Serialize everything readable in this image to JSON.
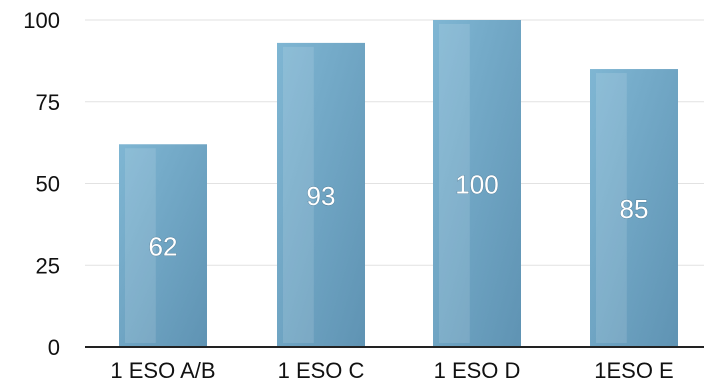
{
  "chart_data": {
    "type": "bar",
    "title": "",
    "xlabel": "",
    "ylabel": "",
    "categories": [
      "1 ESO A/B",
      "1 ESO C",
      "1 ESO D",
      "1ESO E"
    ],
    "values": [
      62,
      93,
      100,
      85
    ],
    "value_labels": [
      "62",
      "93",
      "100",
      "85"
    ],
    "ylim": [
      0,
      100
    ],
    "yticks": [
      0,
      25,
      50,
      75,
      100
    ],
    "ytick_labels": [
      "0",
      "25",
      "50",
      "75",
      "100"
    ],
    "grid": true,
    "legend": "none",
    "colors": {
      "bar_top": "#7fb6d3",
      "bar_bottom": "#5f93b3",
      "grid": "#e2e2e2",
      "axis": "#222222"
    }
  }
}
